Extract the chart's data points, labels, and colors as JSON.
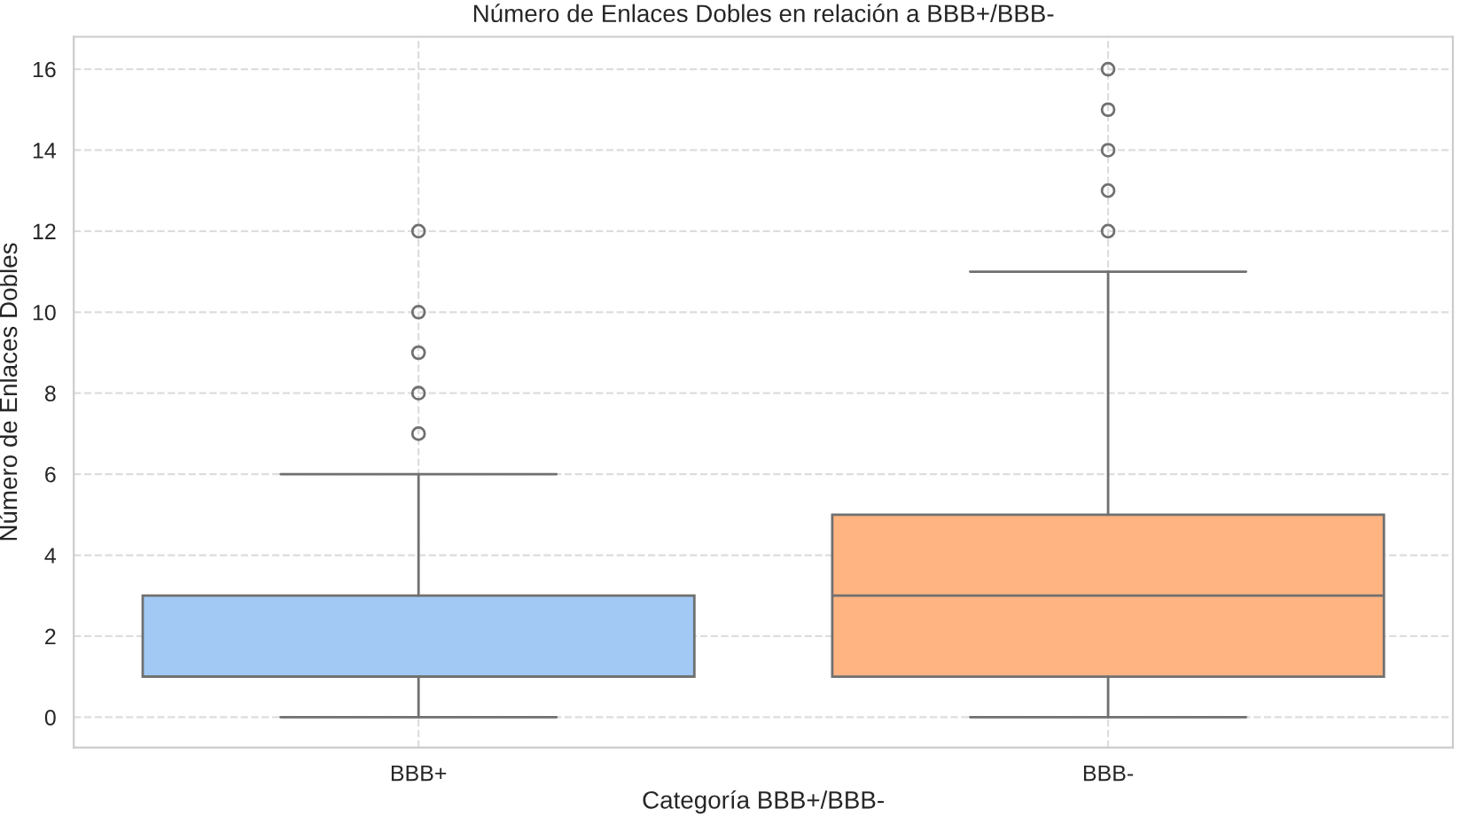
{
  "chart_data": {
    "type": "box",
    "title": "Número de Enlaces Dobles en relación a BBB+/BBB-",
    "xlabel": "Categoría BBB+/BBB-",
    "ylabel": "Número de Enlaces Dobles",
    "categories": [
      "BBB+",
      "BBB-"
    ],
    "boxes": [
      {
        "low": 0,
        "q1": 1,
        "median": 1,
        "q3": 3,
        "high": 6,
        "outliers": [
          7,
          8,
          9,
          10,
          12
        ]
      },
      {
        "low": 0,
        "q1": 1,
        "median": 3,
        "q3": 5,
        "high": 11,
        "outliers": [
          12,
          13,
          14,
          15,
          16
        ]
      }
    ],
    "colors": [
      "#a1c9f4",
      "#ffb482"
    ],
    "ylim": [
      -0.75,
      16.8
    ],
    "yticks": [
      0,
      2,
      4,
      6,
      8,
      10,
      12,
      14,
      16
    ],
    "grid": true
  }
}
